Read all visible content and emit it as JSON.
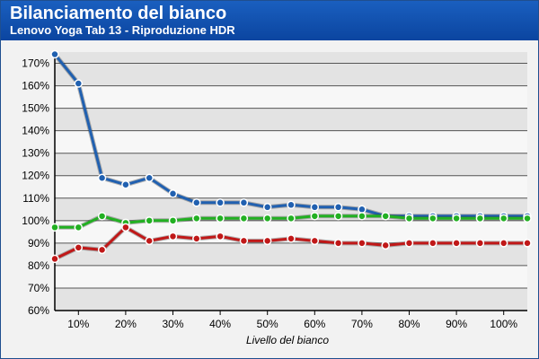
{
  "header": {
    "title": "Bilanciamento del bianco",
    "subtitle": "Lenovo Yoga Tab 13 - Riproduzione HDR"
  },
  "chart_data": {
    "type": "line",
    "title": "Bilanciamento del bianco",
    "subtitle": "Lenovo Yoga Tab 13 - Riproduzione HDR",
    "xlabel": "Livello del bianco",
    "ylabel": "",
    "x": [
      5,
      10,
      15,
      20,
      25,
      30,
      35,
      40,
      45,
      50,
      55,
      60,
      65,
      70,
      75,
      80,
      85,
      90,
      95,
      100,
      105
    ],
    "x_tick_values": [
      10,
      20,
      30,
      40,
      50,
      60,
      70,
      80,
      90,
      100
    ],
    "x_tick_labels": [
      "10%",
      "20%",
      "30%",
      "40%",
      "50%",
      "60%",
      "70%",
      "80%",
      "90%",
      "100%"
    ],
    "xlim": [
      5,
      105
    ],
    "ylim": [
      60,
      175
    ],
    "y_tick_values": [
      60,
      70,
      80,
      90,
      100,
      110,
      120,
      130,
      140,
      150,
      160,
      170
    ],
    "y_tick_labels": [
      "60%",
      "70%",
      "80%",
      "90%",
      "100%",
      "110%",
      "120%",
      "130%",
      "140%",
      "150%",
      "160%",
      "170%"
    ],
    "grid": true,
    "series": [
      {
        "color": "#2060b0",
        "values": [
          174,
          161,
          119,
          116,
          119,
          112,
          108,
          108,
          108,
          106,
          107,
          106,
          106,
          105,
          102,
          102,
          102,
          102,
          102,
          102,
          102
        ]
      },
      {
        "color": "#22b022",
        "values": [
          97,
          97,
          102,
          99,
          100,
          100,
          101,
          101,
          101,
          101,
          101,
          102,
          102,
          102,
          102,
          101,
          101,
          101,
          101,
          101,
          101
        ]
      },
      {
        "color": "#c01818",
        "values": [
          83,
          88,
          87,
          97,
          91,
          93,
          92,
          93,
          91,
          91,
          92,
          91,
          90,
          90,
          89,
          90,
          90,
          90,
          90,
          90,
          90
        ]
      }
    ]
  }
}
